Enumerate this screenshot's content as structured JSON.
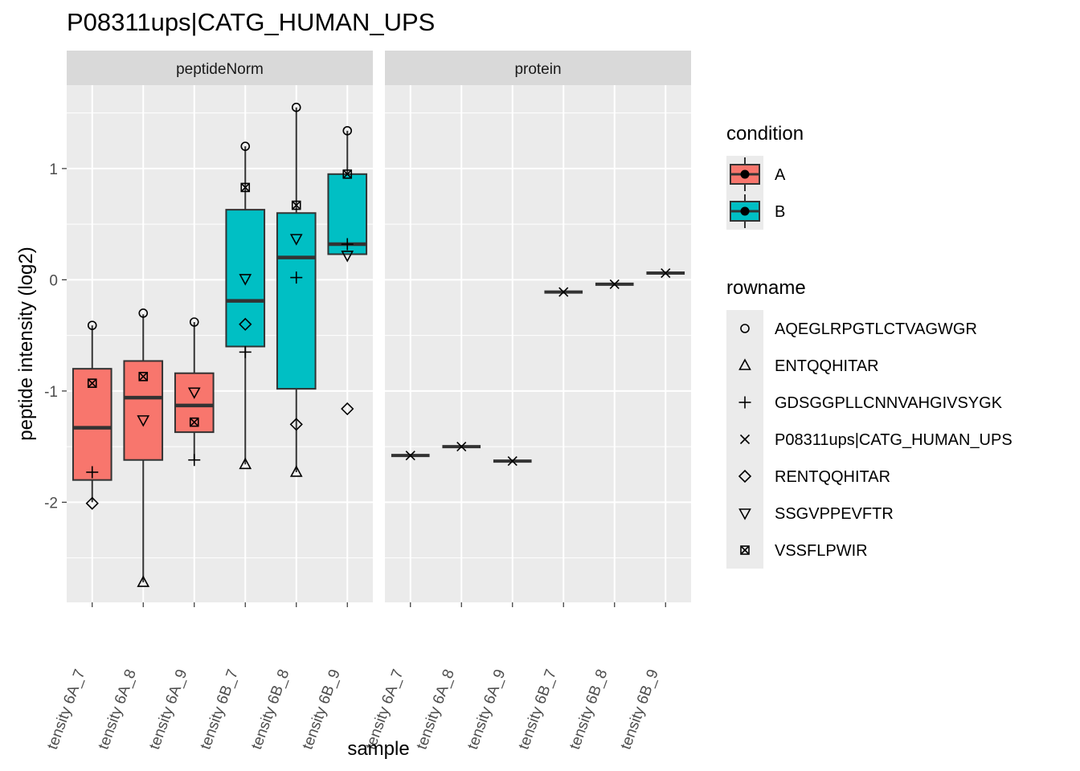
{
  "chart_data": {
    "type": "box",
    "title": "P08311ups|CATG_HUMAN_UPS",
    "xlabel": "sample",
    "ylabel": "peptide intensity (log2)",
    "ylim": [
      -2.9,
      1.75
    ],
    "yticks": [
      -2,
      -1,
      0,
      1
    ],
    "grid": true,
    "samples": [
      "tensity 6A_7",
      "tensity 6A_8",
      "tensity 6A_9",
      "tensity 6B_7",
      "tensity 6B_8",
      "tensity 6B_9"
    ],
    "conditions_by_sample": [
      "A",
      "A",
      "A",
      "B",
      "B",
      "B"
    ],
    "colors": {
      "A": "#F8766D",
      "B": "#00BFC4",
      "panel_bg": "#EBEBEB",
      "strip_bg": "#D9D9D9",
      "grid": "#FFFFFF"
    },
    "legend": {
      "placement": "right",
      "condition_title": "condition",
      "condition": [
        "A",
        "B"
      ],
      "rowname_title": "rowname",
      "rowname": [
        {
          "label": "AQEGLRPGTLCTVAGWGR",
          "shape": "circle"
        },
        {
          "label": "ENTQQHITAR",
          "shape": "triangle"
        },
        {
          "label": "GDSGGPLLCNNVAHGIVSYGK",
          "shape": "plus"
        },
        {
          "label": "P08311ups|CATG_HUMAN_UPS",
          "shape": "cross"
        },
        {
          "label": "RENTQQHITAR",
          "shape": "diamond"
        },
        {
          "label": "SSGVPPEVFTR",
          "shape": "triangle-down"
        },
        {
          "label": "VSSFLPWIR",
          "shape": "square-cross"
        }
      ]
    },
    "facets": [
      {
        "label": "peptideNorm",
        "boxes": [
          {
            "q1": -1.8,
            "median": -1.33,
            "q3": -0.8,
            "whisker_low": -2.0,
            "whisker_high": -0.41
          },
          {
            "q1": -1.62,
            "median": -1.06,
            "q3": -0.73,
            "whisker_low": -2.72,
            "whisker_high": -0.31
          },
          {
            "q1": -1.37,
            "median": -1.13,
            "q3": -0.84,
            "whisker_low": -1.62,
            "whisker_high": -0.38
          },
          {
            "q1": -0.6,
            "median": -0.19,
            "q3": 0.63,
            "whisker_low": -1.66,
            "whisker_high": 1.2
          },
          {
            "q1": -0.98,
            "median": 0.2,
            "q3": 0.6,
            "whisker_low": -1.73,
            "whisker_high": 1.55
          },
          {
            "q1": 0.23,
            "median": 0.32,
            "q3": 0.95,
            "whisker_low": 0.23,
            "whisker_high": 1.34
          }
        ],
        "points": [
          {
            "sample": 0,
            "shape": "circle",
            "y": -0.41
          },
          {
            "sample": 0,
            "shape": "square-cross",
            "y": -0.93
          },
          {
            "sample": 0,
            "shape": "plus",
            "y": -1.73
          },
          {
            "sample": 0,
            "shape": "diamond",
            "y": -2.01
          },
          {
            "sample": 1,
            "shape": "circle",
            "y": -0.3
          },
          {
            "sample": 1,
            "shape": "square-cross",
            "y": -0.87
          },
          {
            "sample": 1,
            "shape": "triangle-down",
            "y": -1.26
          },
          {
            "sample": 1,
            "shape": "triangle",
            "y": -2.72
          },
          {
            "sample": 2,
            "shape": "circle",
            "y": -0.38
          },
          {
            "sample": 2,
            "shape": "triangle-down",
            "y": -1.01
          },
          {
            "sample": 2,
            "shape": "square-cross",
            "y": -1.28
          },
          {
            "sample": 2,
            "shape": "plus",
            "y": -1.62
          },
          {
            "sample": 3,
            "shape": "circle",
            "y": 1.2
          },
          {
            "sample": 3,
            "shape": "square-cross",
            "y": 0.83
          },
          {
            "sample": 3,
            "shape": "triangle-down",
            "y": 0.01
          },
          {
            "sample": 3,
            "shape": "diamond",
            "y": -0.4
          },
          {
            "sample": 3,
            "shape": "plus",
            "y": -0.65
          },
          {
            "sample": 3,
            "shape": "triangle",
            "y": -1.66
          },
          {
            "sample": 4,
            "shape": "circle",
            "y": 1.55
          },
          {
            "sample": 4,
            "shape": "square-cross",
            "y": 0.67
          },
          {
            "sample": 4,
            "shape": "triangle-down",
            "y": 0.37
          },
          {
            "sample": 4,
            "shape": "plus",
            "y": 0.02
          },
          {
            "sample": 4,
            "shape": "diamond",
            "y": -1.3
          },
          {
            "sample": 4,
            "shape": "triangle",
            "y": -1.73
          },
          {
            "sample": 5,
            "shape": "circle",
            "y": 1.34
          },
          {
            "sample": 5,
            "shape": "square-cross",
            "y": 0.95
          },
          {
            "sample": 5,
            "shape": "plus",
            "y": 0.32
          },
          {
            "sample": 5,
            "shape": "triangle-down",
            "y": 0.22
          },
          {
            "sample": 5,
            "shape": "diamond",
            "y": -1.16
          }
        ]
      },
      {
        "label": "protein",
        "boxes": [
          {
            "value": -1.58
          },
          {
            "value": -1.5
          },
          {
            "value": -1.63
          },
          {
            "value": -0.11
          },
          {
            "value": -0.04
          },
          {
            "value": 0.06
          }
        ],
        "points": [
          {
            "sample": 0,
            "shape": "cross",
            "y": -1.58
          },
          {
            "sample": 1,
            "shape": "cross",
            "y": -1.5
          },
          {
            "sample": 2,
            "shape": "cross",
            "y": -1.63
          },
          {
            "sample": 3,
            "shape": "cross",
            "y": -0.11
          },
          {
            "sample": 4,
            "shape": "cross",
            "y": -0.04
          },
          {
            "sample": 5,
            "shape": "cross",
            "y": 0.06
          }
        ]
      }
    ]
  }
}
